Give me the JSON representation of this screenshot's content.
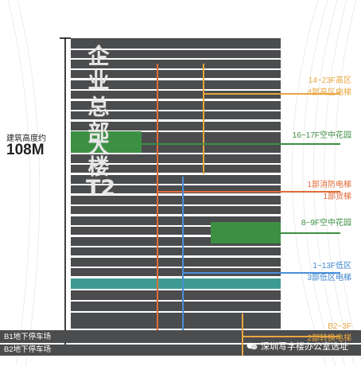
{
  "building": {
    "name_chars": [
      "企",
      "业",
      "总",
      "部",
      "大",
      "楼",
      "T2"
    ],
    "height_caption": "建筑高度约",
    "height_value": "108M"
  },
  "basement": {
    "b1_label": "B1地下停车场",
    "b2_label": "B2地下停车场"
  },
  "annotations": {
    "high_zone": {
      "line1": "14~23F高区",
      "line2": "4部高区电梯"
    },
    "sky_garden_high": {
      "line1": "16~17F空中花园"
    },
    "fire_elevator": {
      "line1": "1部消防电梯",
      "line2": "1部货梯"
    },
    "sky_garden_mid": {
      "line1": "8~9F空中花园"
    },
    "low_zone": {
      "line1": "1~13F低区",
      "line2": "3部低区电梯"
    },
    "transfer": {
      "line1": "B2~3F",
      "line2": "2部转换电梯"
    }
  },
  "watermark": "深圳写字楼办公室选址",
  "colors": {
    "floor": "#4b4c4e",
    "orange": "#e8a640",
    "red_orange": "#e06c3a",
    "green": "#3d8f44",
    "teal": "#3d9a92",
    "blue": "#4a8fd8",
    "label_blue": "#3f86cf"
  }
}
